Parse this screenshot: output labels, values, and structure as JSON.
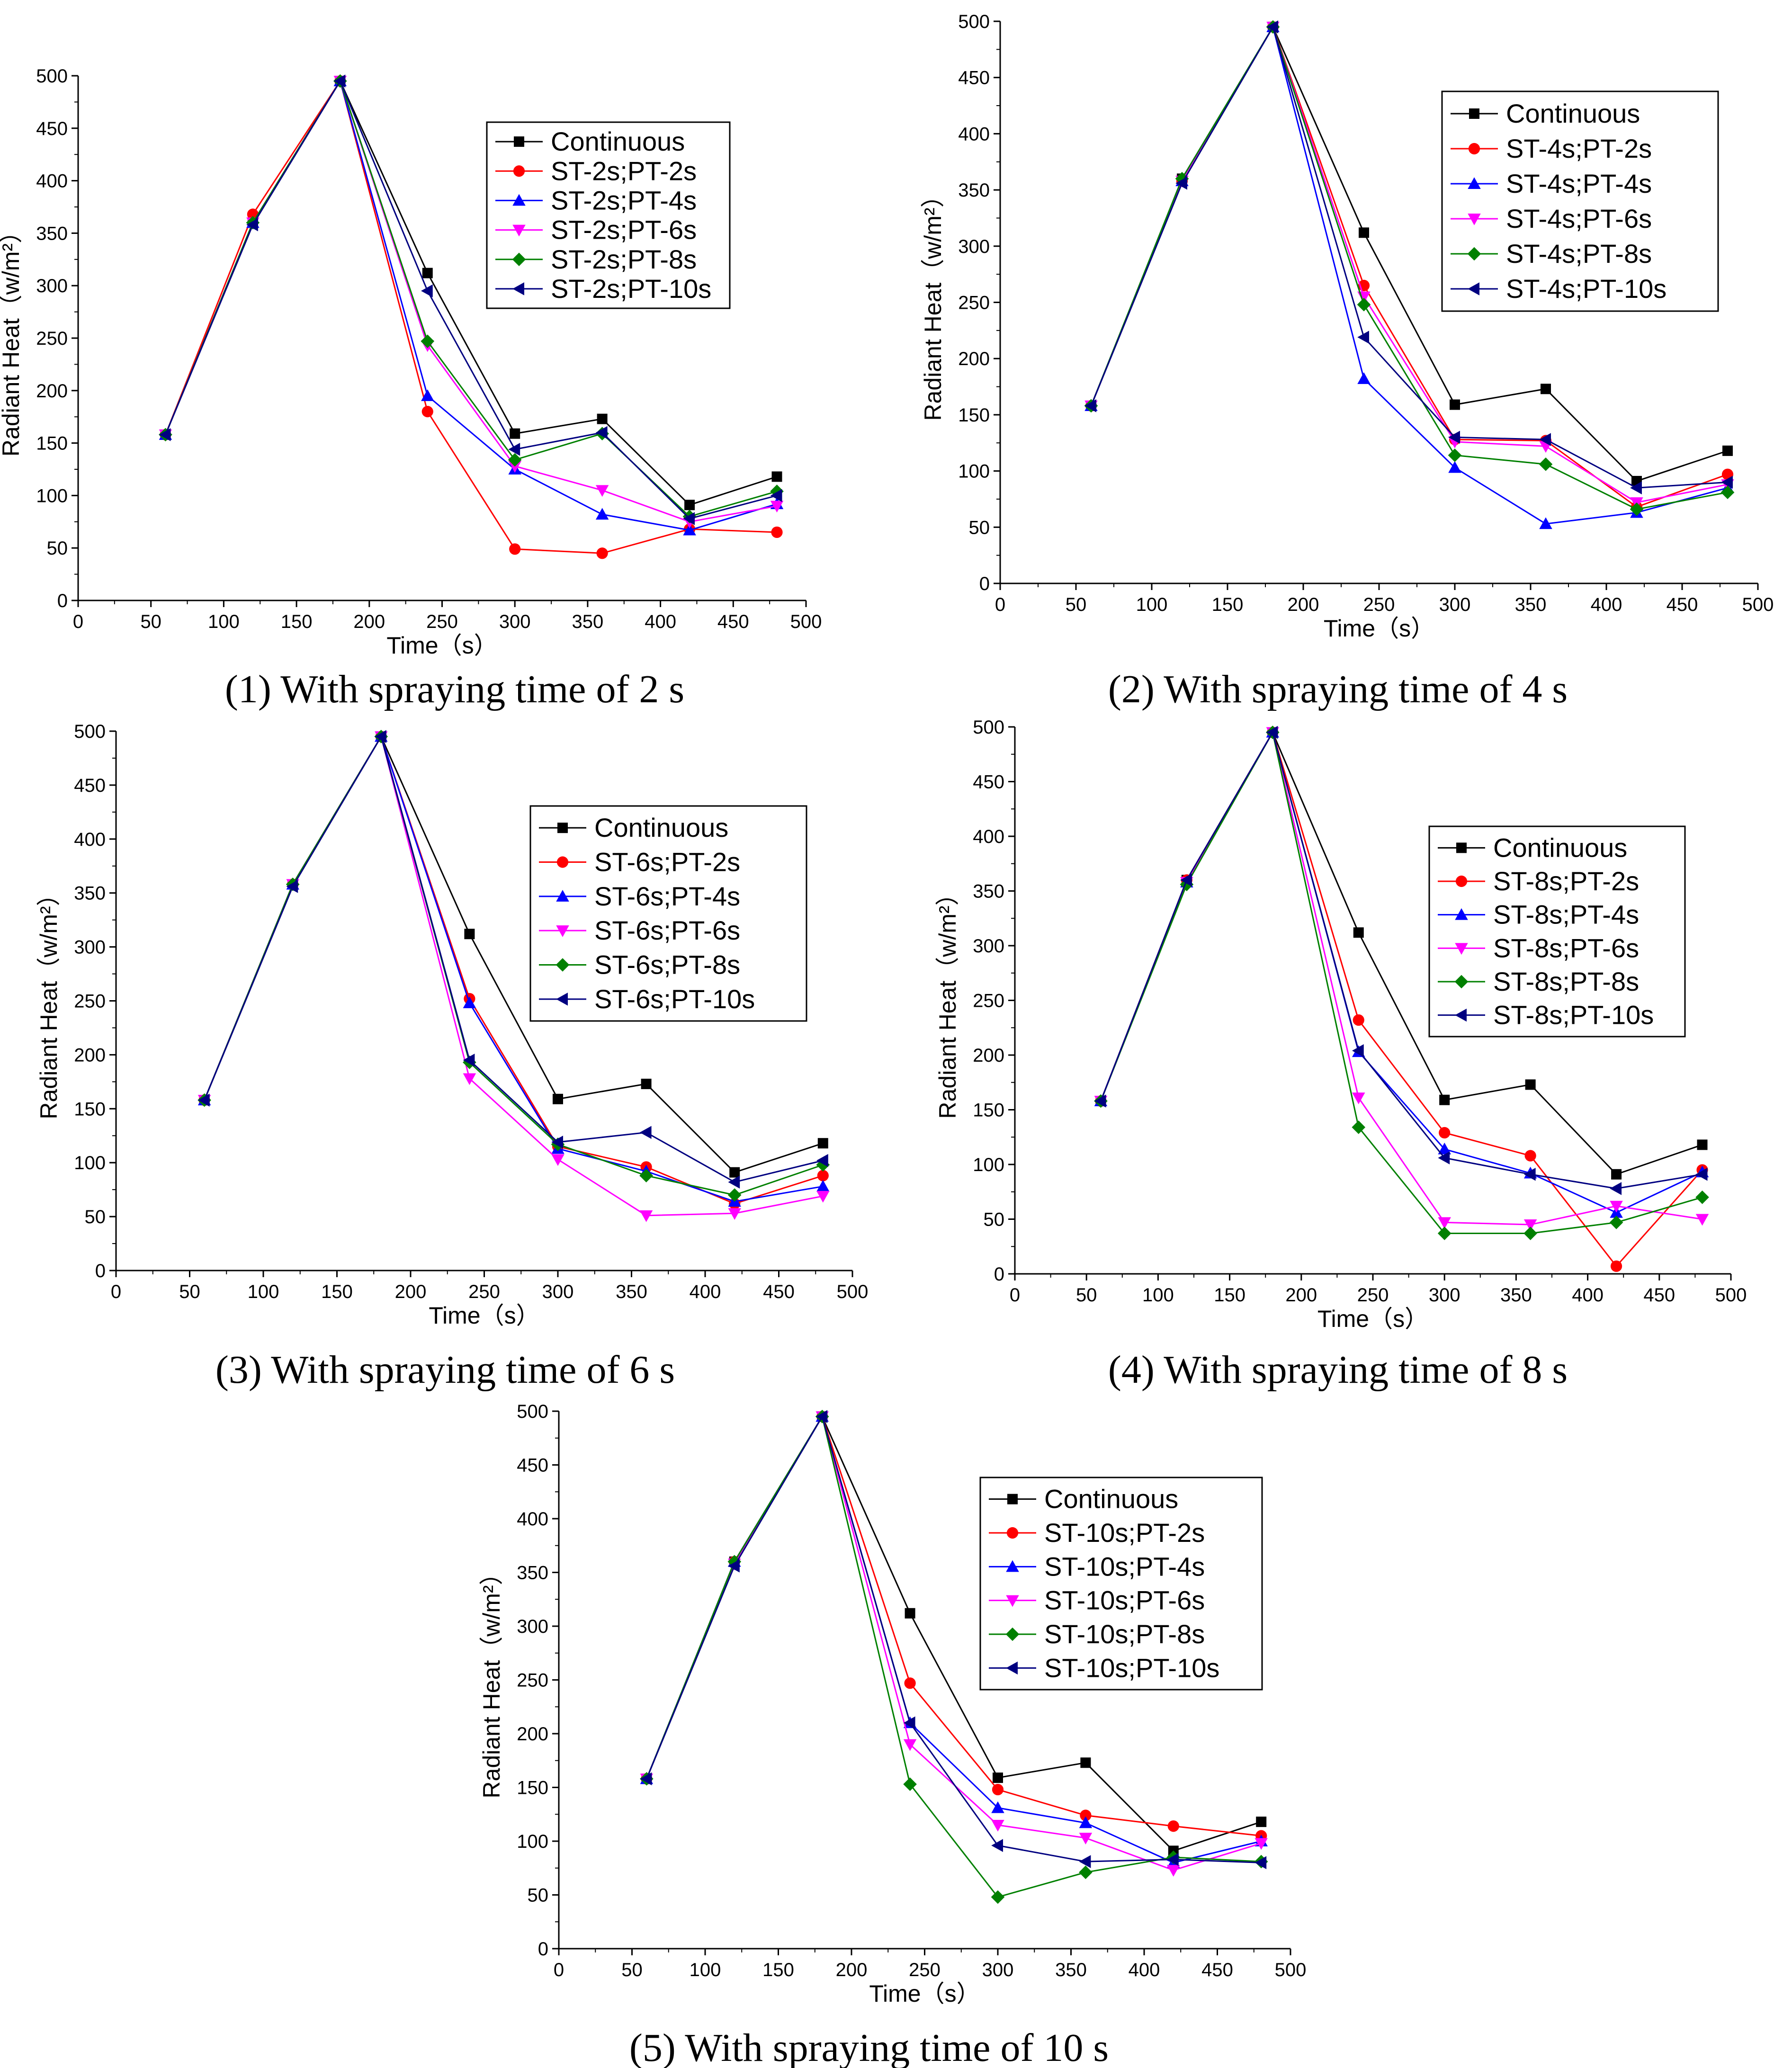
{
  "chart_data": [
    {
      "type": "line",
      "caption": "(1) With spraying time of 2 s",
      "xlabel": "Time（s）",
      "ylabel": "Radiant Heat（w/m²）",
      "xlim": [
        0,
        500
      ],
      "ylim": [
        0,
        500
      ],
      "xticks": [
        0,
        50,
        100,
        150,
        200,
        250,
        300,
        350,
        400,
        450,
        500
      ],
      "yticks": [
        0,
        50,
        100,
        150,
        200,
        250,
        300,
        350,
        400,
        450,
        500
      ],
      "legend_position": "top-right",
      "x": [
        60,
        120,
        180,
        240,
        300,
        360,
        420,
        480
      ],
      "series": [
        {
          "name": "Continuous",
          "color": "#000000",
          "marker": "square",
          "values": [
            158,
            360,
            495,
            312,
            159,
            173,
            91,
            118
          ]
        },
        {
          "name": "ST-2s;PT-2s",
          "color": "#ff0000",
          "marker": "circle",
          "values": [
            158,
            368,
            495,
            180,
            49,
            45,
            68,
            65
          ]
        },
        {
          "name": "ST-2s;PT-4s",
          "color": "#0000ff",
          "marker": "triangle-up",
          "values": [
            158,
            360,
            495,
            195,
            125,
            82,
            67,
            92
          ]
        },
        {
          "name": "ST-2s;PT-6s",
          "color": "#ff00ff",
          "marker": "triangle-down",
          "values": [
            158,
            360,
            495,
            243,
            128,
            105,
            75,
            90
          ]
        },
        {
          "name": "ST-2s;PT-8s",
          "color": "#008000",
          "marker": "diamond",
          "values": [
            158,
            360,
            495,
            247,
            134,
            159,
            80,
            104
          ]
        },
        {
          "name": "ST-2s;PT-10s",
          "color": "#000080",
          "marker": "triangle-left",
          "values": [
            158,
            358,
            495,
            295,
            144,
            160,
            78,
            100
          ]
        }
      ]
    },
    {
      "type": "line",
      "caption": "(2) With spraying time of 4 s",
      "xlabel": "Time（s）",
      "ylabel": "Radiant Heat（w/m²）",
      "xlim": [
        0,
        500
      ],
      "ylim": [
        0,
        500
      ],
      "xticks": [
        0,
        50,
        100,
        150,
        200,
        250,
        300,
        350,
        400,
        450,
        500
      ],
      "yticks": [
        0,
        50,
        100,
        150,
        200,
        250,
        300,
        350,
        400,
        450,
        500
      ],
      "legend_position": "top-right",
      "x": [
        60,
        120,
        180,
        240,
        300,
        360,
        420,
        480
      ],
      "series": [
        {
          "name": "Continuous",
          "color": "#000000",
          "marker": "square",
          "values": [
            158,
            360,
            495,
            312,
            159,
            173,
            91,
            118
          ]
        },
        {
          "name": "ST-4s;PT-2s",
          "color": "#ff0000",
          "marker": "circle",
          "values": [
            158,
            358,
            495,
            265,
            128,
            127,
            68,
            97
          ]
        },
        {
          "name": "ST-4s;PT-4s",
          "color": "#0000ff",
          "marker": "triangle-up",
          "values": [
            158,
            358,
            495,
            182,
            103,
            53,
            63,
            85
          ]
        },
        {
          "name": "ST-4s;PT-6s",
          "color": "#ff00ff",
          "marker": "triangle-down",
          "values": [
            158,
            358,
            495,
            255,
            126,
            122,
            72,
            88
          ]
        },
        {
          "name": "ST-4s;PT-8s",
          "color": "#008000",
          "marker": "diamond",
          "values": [
            158,
            360,
            495,
            248,
            114,
            106,
            66,
            81
          ]
        },
        {
          "name": "ST-4s;PT-10s",
          "color": "#000080",
          "marker": "triangle-left",
          "values": [
            158,
            356,
            495,
            219,
            130,
            128,
            85,
            90
          ]
        }
      ]
    },
    {
      "type": "line",
      "caption": "(3) With spraying time of 6 s",
      "xlabel": "Time（s）",
      "ylabel": "Radiant Heat（w/m²）",
      "xlim": [
        0,
        500
      ],
      "ylim": [
        0,
        500
      ],
      "xticks": [
        0,
        50,
        100,
        150,
        200,
        250,
        300,
        350,
        400,
        450,
        500
      ],
      "yticks": [
        0,
        50,
        100,
        150,
        200,
        250,
        300,
        350,
        400,
        450,
        500
      ],
      "legend_position": "top-right",
      "x": [
        60,
        120,
        180,
        240,
        300,
        360,
        420,
        480
      ],
      "series": [
        {
          "name": "Continuous",
          "color": "#000000",
          "marker": "square",
          "values": [
            158,
            358,
            495,
            312,
            159,
            173,
            91,
            118
          ]
        },
        {
          "name": "ST-6s;PT-2s",
          "color": "#ff0000",
          "marker": "circle",
          "values": [
            158,
            358,
            495,
            252,
            115,
            96,
            62,
            88
          ]
        },
        {
          "name": "ST-6s;PT-4s",
          "color": "#0000ff",
          "marker": "triangle-up",
          "values": [
            158,
            358,
            495,
            248,
            113,
            92,
            64,
            78
          ]
        },
        {
          "name": "ST-6s;PT-6s",
          "color": "#ff00ff",
          "marker": "triangle-down",
          "values": [
            158,
            358,
            495,
            178,
            103,
            51,
            53,
            69
          ]
        },
        {
          "name": "ST-6s;PT-8s",
          "color": "#008000",
          "marker": "diamond",
          "values": [
            158,
            358,
            495,
            193,
            117,
            88,
            70,
            98
          ]
        },
        {
          "name": "ST-6s;PT-10s",
          "color": "#000080",
          "marker": "triangle-left",
          "values": [
            158,
            356,
            495,
            195,
            119,
            128,
            82,
            102
          ]
        }
      ]
    },
    {
      "type": "line",
      "caption": "(4) With spraying time of 8 s",
      "xlabel": "Time（s）",
      "ylabel": "Radiant Heat（w/m²）",
      "xlim": [
        0,
        500
      ],
      "ylim": [
        0,
        500
      ],
      "xticks": [
        0,
        50,
        100,
        150,
        200,
        250,
        300,
        350,
        400,
        450,
        500
      ],
      "yticks": [
        0,
        50,
        100,
        150,
        200,
        250,
        300,
        350,
        400,
        450,
        500
      ],
      "legend_position": "top-right",
      "x": [
        60,
        120,
        180,
        240,
        300,
        360,
        420,
        480
      ],
      "series": [
        {
          "name": "Continuous",
          "color": "#000000",
          "marker": "square",
          "values": [
            158,
            360,
            495,
            312,
            159,
            173,
            91,
            118
          ]
        },
        {
          "name": "ST-8s;PT-2s",
          "color": "#ff0000",
          "marker": "circle",
          "values": [
            158,
            360,
            495,
            232,
            129,
            108,
            7,
            95
          ]
        },
        {
          "name": "ST-8s;PT-4s",
          "color": "#0000ff",
          "marker": "triangle-up",
          "values": [
            158,
            358,
            495,
            203,
            114,
            92,
            56,
            93
          ]
        },
        {
          "name": "ST-8s;PT-6s",
          "color": "#ff00ff",
          "marker": "triangle-down",
          "values": [
            158,
            358,
            495,
            161,
            47,
            45,
            62,
            50
          ]
        },
        {
          "name": "ST-8s;PT-8s",
          "color": "#008000",
          "marker": "diamond",
          "values": [
            158,
            356,
            495,
            134,
            37,
            37,
            47,
            70
          ]
        },
        {
          "name": "ST-8s;PT-10s",
          "color": "#000080",
          "marker": "triangle-left",
          "values": [
            158,
            360,
            495,
            204,
            106,
            91,
            78,
            91
          ]
        }
      ]
    },
    {
      "type": "line",
      "caption": "(5) With spraying time of 10 s",
      "xlabel": "Time（s）",
      "ylabel": "Radiant Heat（w/m²）",
      "xlim": [
        0,
        500
      ],
      "ylim": [
        0,
        500
      ],
      "xticks": [
        0,
        50,
        100,
        150,
        200,
        250,
        300,
        350,
        400,
        450,
        500
      ],
      "yticks": [
        0,
        50,
        100,
        150,
        200,
        250,
        300,
        350,
        400,
        450,
        500
      ],
      "legend_position": "top-right",
      "x": [
        60,
        120,
        180,
        240,
        300,
        360,
        420,
        480
      ],
      "series": [
        {
          "name": "Continuous",
          "color": "#000000",
          "marker": "square",
          "values": [
            158,
            360,
            495,
            312,
            159,
            173,
            91,
            118
          ]
        },
        {
          "name": "ST-10s;PT-2s",
          "color": "#ff0000",
          "marker": "circle",
          "values": [
            158,
            360,
            495,
            247,
            148,
            124,
            114,
            105
          ]
        },
        {
          "name": "ST-10s;PT-4s",
          "color": "#0000ff",
          "marker": "triangle-up",
          "values": [
            158,
            360,
            495,
            210,
            131,
            117,
            80,
            100
          ]
        },
        {
          "name": "ST-10s;PT-6s",
          "color": "#ff00ff",
          "marker": "triangle-down",
          "values": [
            158,
            358,
            495,
            190,
            115,
            103,
            73,
            98
          ]
        },
        {
          "name": "ST-10s;PT-8s",
          "color": "#008000",
          "marker": "diamond",
          "values": [
            158,
            360,
            495,
            153,
            48,
            71,
            85,
            81
          ]
        },
        {
          "name": "ST-10s;PT-10s",
          "color": "#000080",
          "marker": "triangle-left",
          "values": [
            158,
            356,
            495,
            210,
            96,
            81,
            83,
            80
          ]
        }
      ]
    }
  ]
}
